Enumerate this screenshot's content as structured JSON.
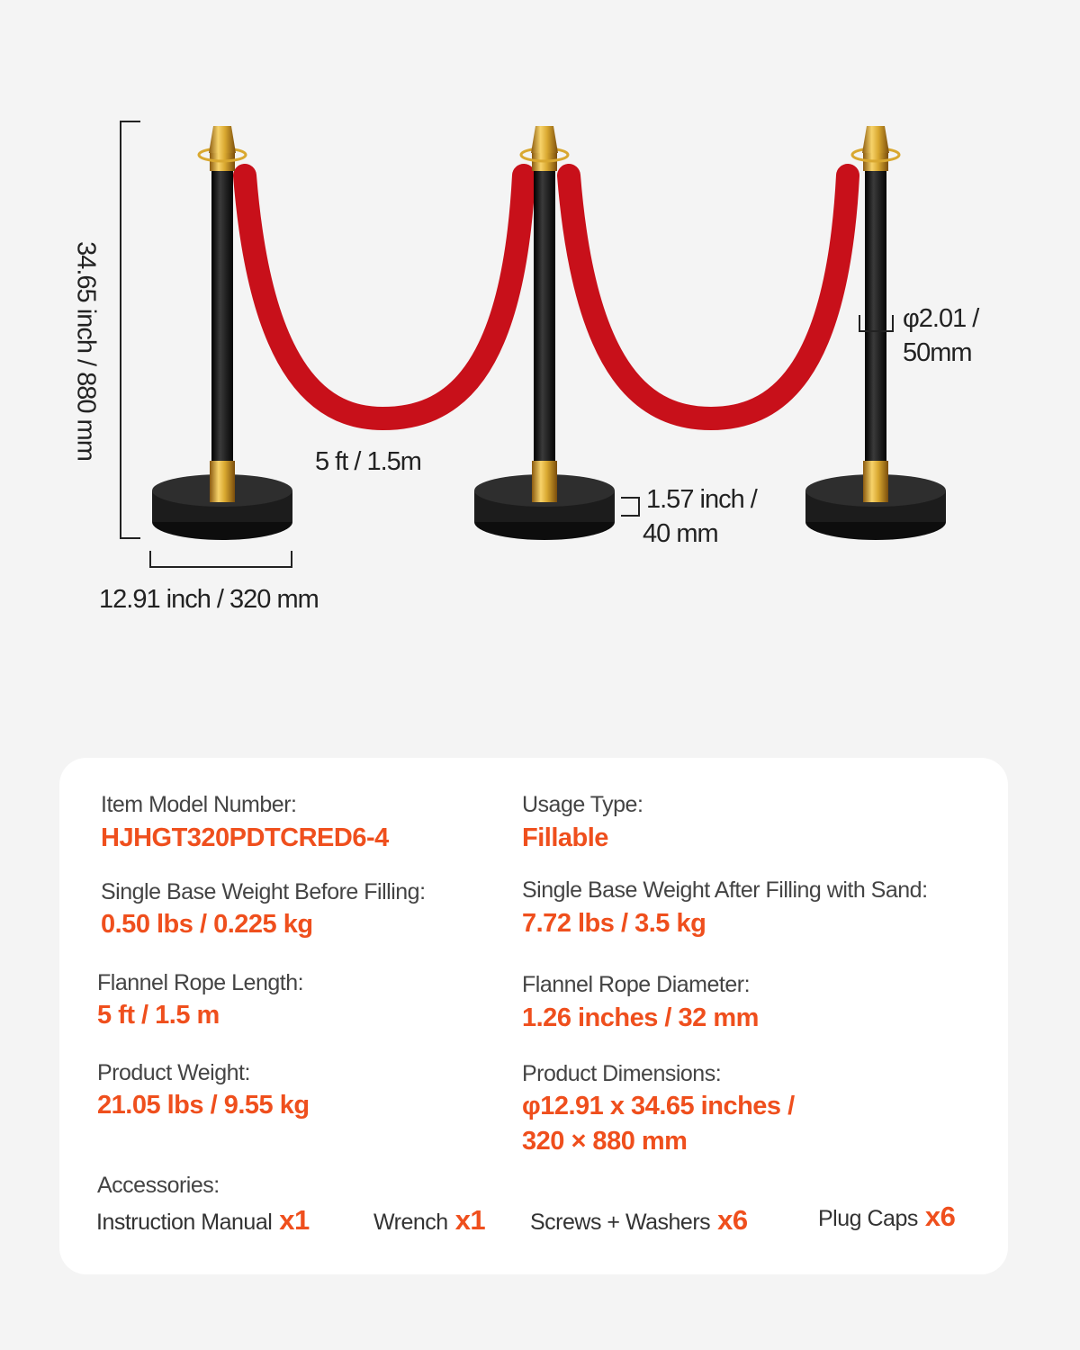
{
  "dimensions": {
    "height": "34.65 inch / 880 mm",
    "base_diameter": "12.91 inch  /  320 mm",
    "rope_length": "5 ft  /  1.5m",
    "base_height_line1": "1.57 inch /",
    "base_height_line2": "40 mm",
    "pole_diameter_line1": "φ2.01 /",
    "pole_diameter_line2": "50mm"
  },
  "colors": {
    "accent": "#ef4f1d",
    "rope": "#c8101a",
    "gold": "#d9a830",
    "post": "#1a1a1a"
  },
  "specs": {
    "model_label": "Item Model Number:",
    "model_value": "HJHGT320PDTCRED6-4",
    "usage_label": "Usage Type:",
    "usage_value": "Fillable",
    "before_label": "Single Base Weight Before Filling:",
    "before_value": "0.50 lbs / 0.225 kg",
    "after_label": "Single Base Weight After Filling with Sand:",
    "after_value": "7.72 lbs / 3.5 kg",
    "rope_len_label": "Flannel Rope Length:",
    "rope_len_value": "5 ft / 1.5 m",
    "rope_dia_label": "Flannel Rope Diameter:",
    "rope_dia_value": "1.26 inches / 32 mm",
    "weight_label": "Product Weight:",
    "weight_value": "21.05 lbs / 9.55 kg",
    "dims_label": "Product Dimensions:",
    "dims_value_line1": "φ12.91 x 34.65 inches /",
    "dims_value_line2": "320 × 880 mm",
    "accessories_label": "Accessories:",
    "accessories": [
      {
        "name": "Instruction Manual",
        "qty": "x1"
      },
      {
        "name": "Wrench",
        "qty": "x1"
      },
      {
        "name": "Screws + Washers",
        "qty": "x6"
      },
      {
        "name": "Plug Caps",
        "qty": "x6"
      }
    ]
  }
}
